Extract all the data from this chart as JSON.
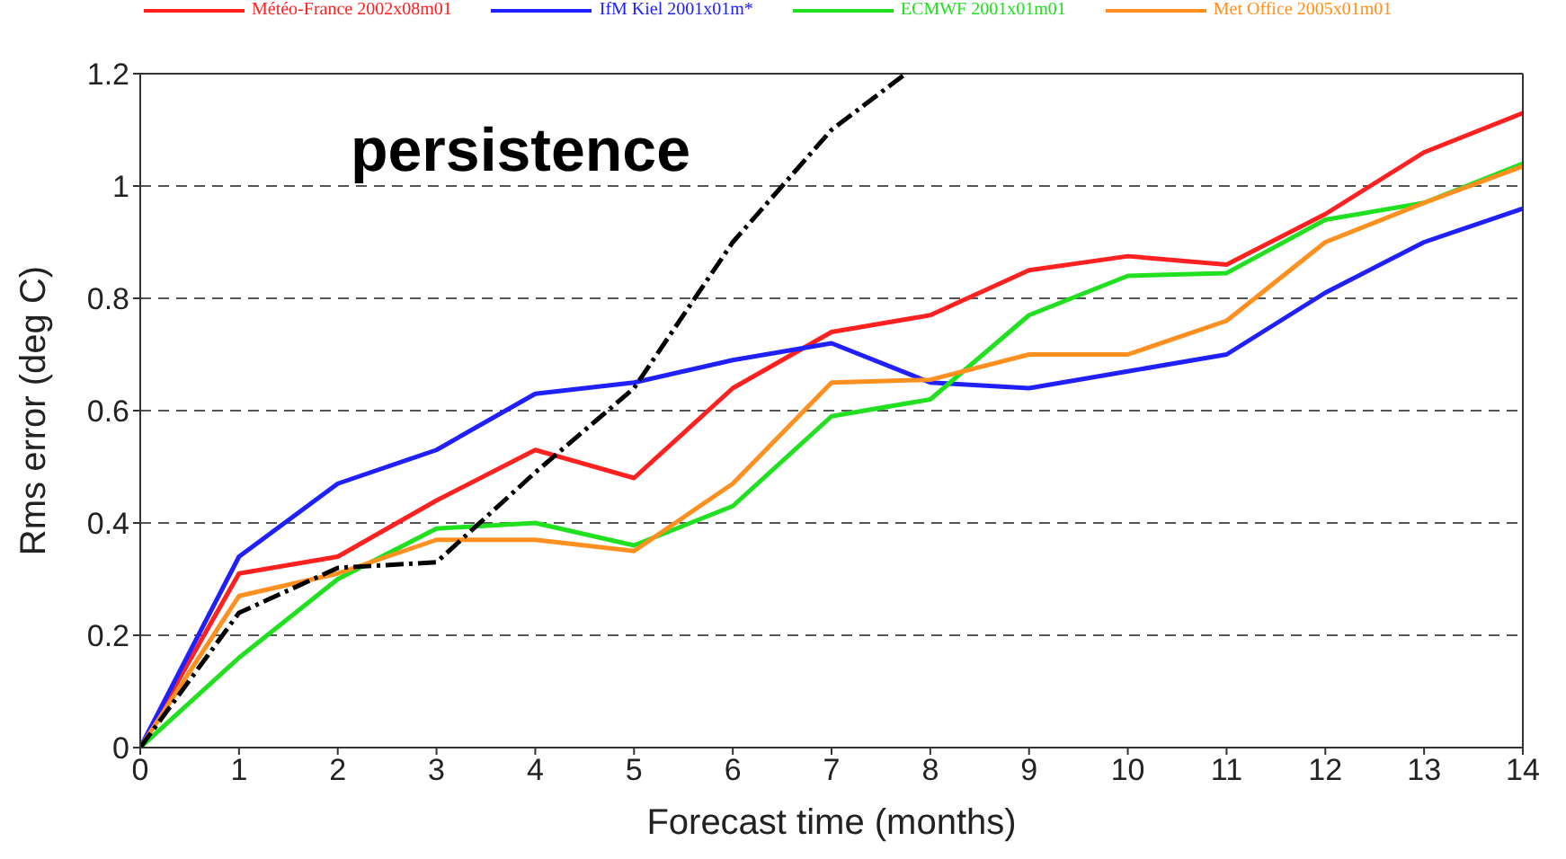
{
  "chart_data": {
    "type": "line",
    "xlabel": "Forecast time (months)",
    "ylabel": "Rms error (deg C)",
    "x": [
      0,
      1,
      2,
      3,
      4,
      5,
      6,
      7,
      8,
      9,
      10,
      11,
      12,
      13,
      14
    ],
    "xlim": [
      0,
      14
    ],
    "xticks": [
      0,
      1,
      2,
      3,
      4,
      5,
      6,
      7,
      8,
      9,
      10,
      11,
      12,
      13,
      14
    ],
    "ylim": [
      0,
      1.2
    ],
    "yticks": [
      0,
      0.2,
      0.4,
      0.6,
      0.8,
      1,
      1.2
    ],
    "grid": "y",
    "legend": "top",
    "marker": "none",
    "annotations": [
      "persistence"
    ],
    "series": [
      {
        "name": "Météo-France 2002x08m01",
        "color": "#ff2020",
        "line_style": "solid",
        "values": [
          0,
          0.31,
          0.34,
          0.44,
          0.53,
          0.48,
          0.64,
          0.74,
          0.77,
          0.85,
          0.875,
          0.86,
          0.95,
          1.06,
          1.13
        ]
      },
      {
        "name": "IfM Kiel 2001x01m*",
        "color": "#2020ff",
        "line_style": "solid",
        "values": [
          0,
          0.34,
          0.47,
          0.53,
          0.63,
          0.65,
          0.69,
          0.72,
          0.65,
          0.64,
          0.67,
          0.7,
          0.81,
          0.9,
          0.96
        ]
      },
      {
        "name": "ECMWF 2001x01m01",
        "color": "#20e020",
        "line_style": "solid",
        "values": [
          0,
          0.16,
          0.3,
          0.39,
          0.4,
          0.36,
          0.43,
          0.59,
          0.62,
          0.77,
          0.84,
          0.845,
          0.94,
          0.97,
          1.04
        ]
      },
      {
        "name": "Met Office 2005x01m01",
        "color": "#ff9020",
        "line_style": "solid",
        "values": [
          0,
          0.27,
          0.31,
          0.37,
          0.37,
          0.35,
          0.47,
          0.65,
          0.655,
          0.7,
          0.7,
          0.76,
          0.9,
          0.97,
          1.035
        ]
      },
      {
        "color": "#000000",
        "line_style": "dashed",
        "x": [
          0,
          1,
          2,
          3,
          4,
          5,
          6,
          7,
          7.75
        ],
        "values": [
          0,
          0.24,
          0.32,
          0.33,
          0.49,
          0.64,
          0.9,
          1.1,
          1.2
        ]
      }
    ]
  }
}
